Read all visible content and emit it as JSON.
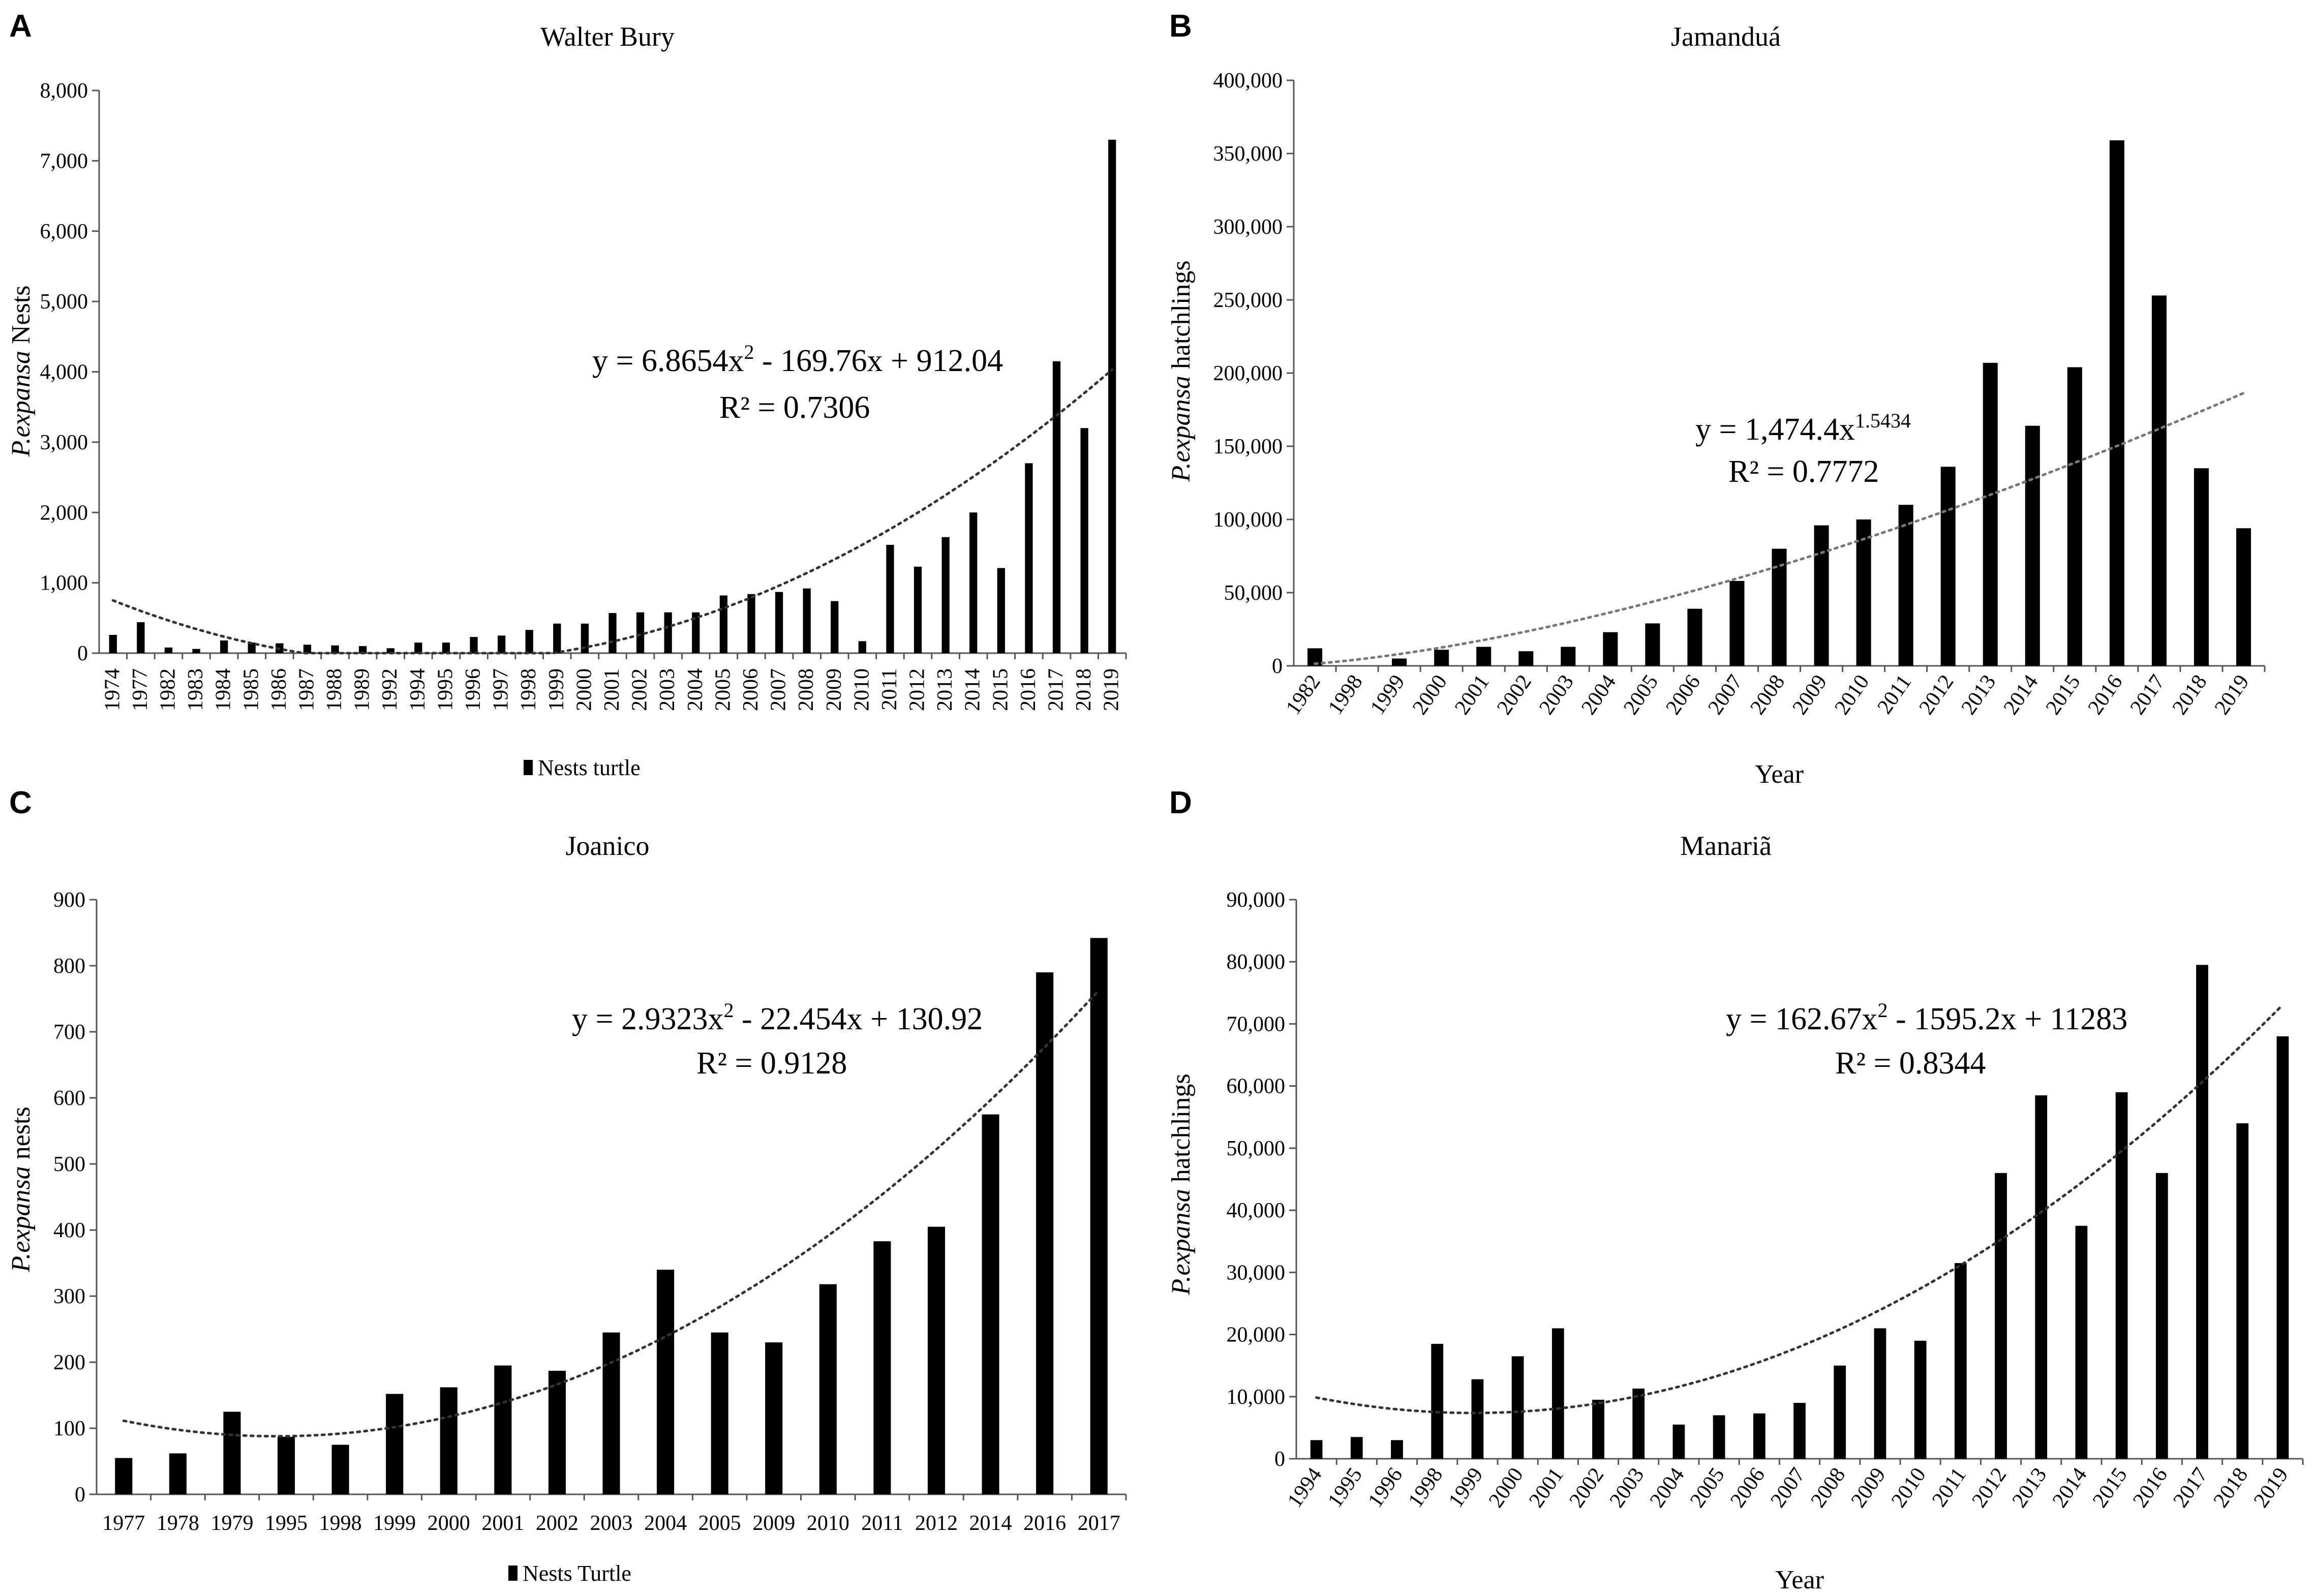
{
  "chart_data": [
    {
      "type": "bar",
      "panel": "A",
      "title": "Walter Bury",
      "ylabel_italic": "P.expansa",
      "ylabel_rest": " Nests",
      "xlabel": "",
      "legend": "Nests turtle",
      "categories": [
        "1974",
        "1977",
        "1982",
        "1983",
        "1984",
        "1985",
        "1986",
        "1987",
        "1988",
        "1989",
        "1992",
        "1994",
        "1995",
        "1996",
        "1997",
        "1998",
        "1999",
        "2000",
        "2001",
        "2002",
        "2003",
        "2004",
        "2005",
        "2006",
        "2007",
        "2008",
        "2009",
        "2010",
        "2011",
        "2012",
        "2013",
        "2014",
        "2015",
        "2016",
        "2017",
        "2018",
        "2019"
      ],
      "values": [
        260,
        440,
        80,
        60,
        180,
        150,
        140,
        120,
        110,
        100,
        70,
        150,
        150,
        230,
        250,
        330,
        420,
        420,
        570,
        580,
        580,
        580,
        820,
        840,
        870,
        920,
        740,
        170,
        1540,
        1230,
        1650,
        2000,
        1210,
        2700,
        4150,
        3200,
        7300
      ],
      "ylim": [
        0,
        8000
      ],
      "yticks": [
        0,
        1000,
        2000,
        3000,
        4000,
        5000,
        6000,
        7000,
        8000
      ],
      "ytick_labels": [
        "0",
        "1,000",
        "2,000",
        "3,000",
        "4,000",
        "5,000",
        "6,000",
        "7,000",
        "8,000"
      ],
      "trendline": {
        "kind": "poly2",
        "a": 6.8654,
        "b": -169.76,
        "c": 912.04
      },
      "equation": "y = 6.8654x",
      "equation_sup": "2",
      "equation_rest": " - 169.76x + 912.04",
      "r2": "R² = 0.7306"
    },
    {
      "type": "bar",
      "panel": "B",
      "title": "Jamanduá",
      "ylabel_italic": "P.expansa",
      "ylabel_rest": " hatchlings",
      "xlabel": "Year",
      "legend": "",
      "categories": [
        "1982",
        "1998",
        "1999",
        "2000",
        "2001",
        "2002",
        "2003",
        "2004",
        "2005",
        "2006",
        "2007",
        "2008",
        "2009",
        "2010",
        "2011",
        "2012",
        "2013",
        "2014",
        "2015",
        "2016",
        "2017",
        "2018",
        "2019"
      ],
      "values": [
        12000,
        0,
        5000,
        11000,
        13000,
        10000,
        13000,
        23000,
        29000,
        39000,
        58000,
        80000,
        96000,
        100000,
        110000,
        136000,
        207000,
        164000,
        204000,
        359000,
        253000,
        135000,
        94000
      ],
      "ylim": [
        0,
        400000
      ],
      "yticks": [
        0,
        50000,
        100000,
        150000,
        200000,
        250000,
        300000,
        350000,
        400000
      ],
      "ytick_labels": [
        "0",
        "50,000",
        "100,000",
        "150,000",
        "200,000",
        "250,000",
        "300,000",
        "350,000",
        "400,000"
      ],
      "trendline": {
        "kind": "power",
        "a": 1474.4,
        "b": 1.5434
      },
      "equation": "y = 1,474.4x",
      "equation_sup": "1.5434",
      "equation_rest": "",
      "r2": "R² = 0.7772"
    },
    {
      "type": "bar",
      "panel": "C",
      "title": "Joanico",
      "ylabel_italic": "P.expansa",
      "ylabel_rest": " nests",
      "xlabel": "",
      "legend": "Nests Turtle",
      "categories": [
        "1977",
        "1978",
        "1979",
        "1995",
        "1998",
        "1999",
        "2000",
        "2001",
        "2002",
        "2003",
        "2004",
        "2005",
        "2009",
        "2010",
        "2011",
        "2012",
        "2014",
        "2016",
        "2017"
      ],
      "values": [
        55,
        62,
        125,
        87,
        75,
        152,
        162,
        195,
        187,
        245,
        340,
        245,
        230,
        318,
        383,
        405,
        575,
        790,
        842
      ],
      "ylim": [
        0,
        900
      ],
      "yticks": [
        0,
        100,
        200,
        300,
        400,
        500,
        600,
        700,
        800,
        900
      ],
      "ytick_labels": [
        "0",
        "100",
        "200",
        "300",
        "400",
        "500",
        "600",
        "700",
        "800",
        "900"
      ],
      "trendline": {
        "kind": "poly2",
        "a": 2.9323,
        "b": -22.454,
        "c": 130.92
      },
      "equation": "y = 2.9323x",
      "equation_sup": "2",
      "equation_rest": " - 22.454x + 130.92",
      "r2": "R² = 0.9128"
    },
    {
      "type": "bar",
      "panel": "D",
      "title": "Manariã",
      "ylabel_italic": "P.expansa",
      "ylabel_rest": " hatchlings",
      "xlabel": "Year",
      "legend": "",
      "categories": [
        "1994",
        "1995",
        "1996",
        "1998",
        "1999",
        "2000",
        "2001",
        "2002",
        "2003",
        "2004",
        "2005",
        "2006",
        "2007",
        "2008",
        "2009",
        "2010",
        "2011",
        "2012",
        "2013",
        "2014",
        "2015",
        "2016",
        "2017",
        "2018",
        "2019"
      ],
      "values": [
        3000,
        3500,
        3000,
        18500,
        12800,
        16500,
        21000,
        9500,
        11300,
        5500,
        7000,
        7300,
        9000,
        15000,
        21000,
        19000,
        31500,
        46000,
        58500,
        37500,
        59000,
        46000,
        79500,
        54000,
        68000
      ],
      "ylim": [
        0,
        90000
      ],
      "yticks": [
        0,
        10000,
        20000,
        30000,
        40000,
        50000,
        60000,
        70000,
        80000,
        90000
      ],
      "ytick_labels": [
        "0",
        "10,000",
        "20,000",
        "30,000",
        "40,000",
        "50,000",
        "60,000",
        "70,000",
        "80,000",
        "90,000"
      ],
      "trendline": {
        "kind": "poly2",
        "a": 162.67,
        "b": -1595.2,
        "c": 11283
      },
      "equation": "y = 162.67x",
      "equation_sup": "2",
      "equation_rest": " - 1595.2x + 11283",
      "r2": "R² = 0.8344"
    }
  ]
}
